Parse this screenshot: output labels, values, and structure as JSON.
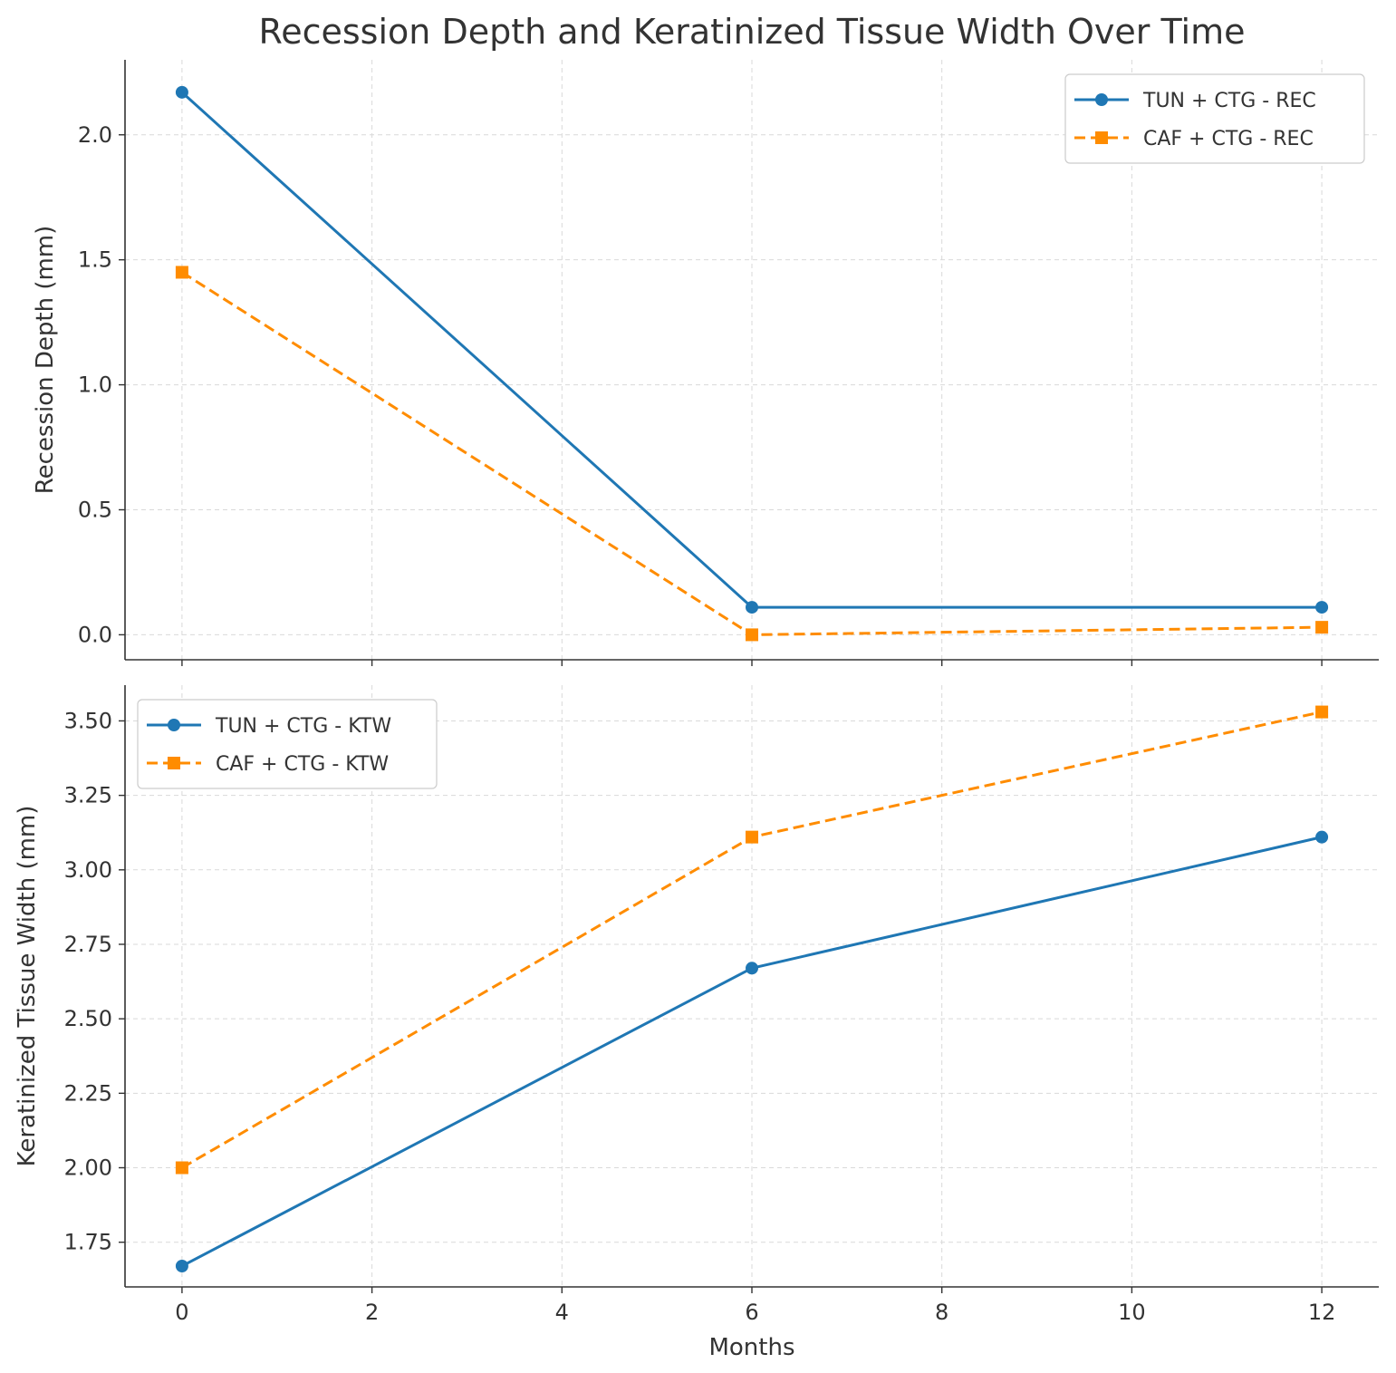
{
  "chart_data": {
    "type": "line",
    "title": "Recession Depth and Keratinized Tissue Width Over Time",
    "xlabel": "Months",
    "xlim": [
      -0.6,
      12.6
    ],
    "xticks": [
      0,
      2,
      4,
      6,
      8,
      10,
      12
    ],
    "grid": true,
    "subplots": [
      {
        "ylabel": "Recession Depth (mm)",
        "ylim": [
          -0.1,
          2.3
        ],
        "yticks": [
          0.0,
          0.5,
          1.0,
          1.5,
          2.0
        ],
        "ytick_labels": [
          "0.0",
          "0.5",
          "1.0",
          "1.5",
          "2.0"
        ],
        "legend_position": "upper right",
        "series": [
          {
            "name": "TUN + CTG - REC",
            "x": [
              0,
              6,
              12
            ],
            "values": [
              2.17,
              0.11,
              0.11
            ],
            "color": "#1f77b4",
            "style": "solid",
            "marker": "circle"
          },
          {
            "name": "CAF + CTG - REC",
            "x": [
              0,
              6,
              12
            ],
            "values": [
              1.45,
              0.0,
              0.03
            ],
            "color": "#ff8c00",
            "style": "dashed",
            "marker": "square"
          }
        ]
      },
      {
        "ylabel": "Keratinized Tissue Width (mm)",
        "ylim": [
          1.6,
          3.62
        ],
        "yticks": [
          1.75,
          2.0,
          2.25,
          2.5,
          2.75,
          3.0,
          3.25,
          3.5
        ],
        "ytick_labels": [
          "1.75",
          "2.00",
          "2.25",
          "2.50",
          "2.75",
          "3.00",
          "3.25",
          "3.50"
        ],
        "legend_position": "upper left",
        "series": [
          {
            "name": "TUN + CTG - KTW",
            "x": [
              0,
              6,
              12
            ],
            "values": [
              1.67,
              2.67,
              3.11
            ],
            "color": "#1f77b4",
            "style": "solid",
            "marker": "circle"
          },
          {
            "name": "CAF + CTG - KTW",
            "x": [
              0,
              6,
              12
            ],
            "values": [
              2.0,
              3.11,
              3.53
            ],
            "color": "#ff8c00",
            "style": "dashed",
            "marker": "square"
          }
        ]
      }
    ]
  }
}
